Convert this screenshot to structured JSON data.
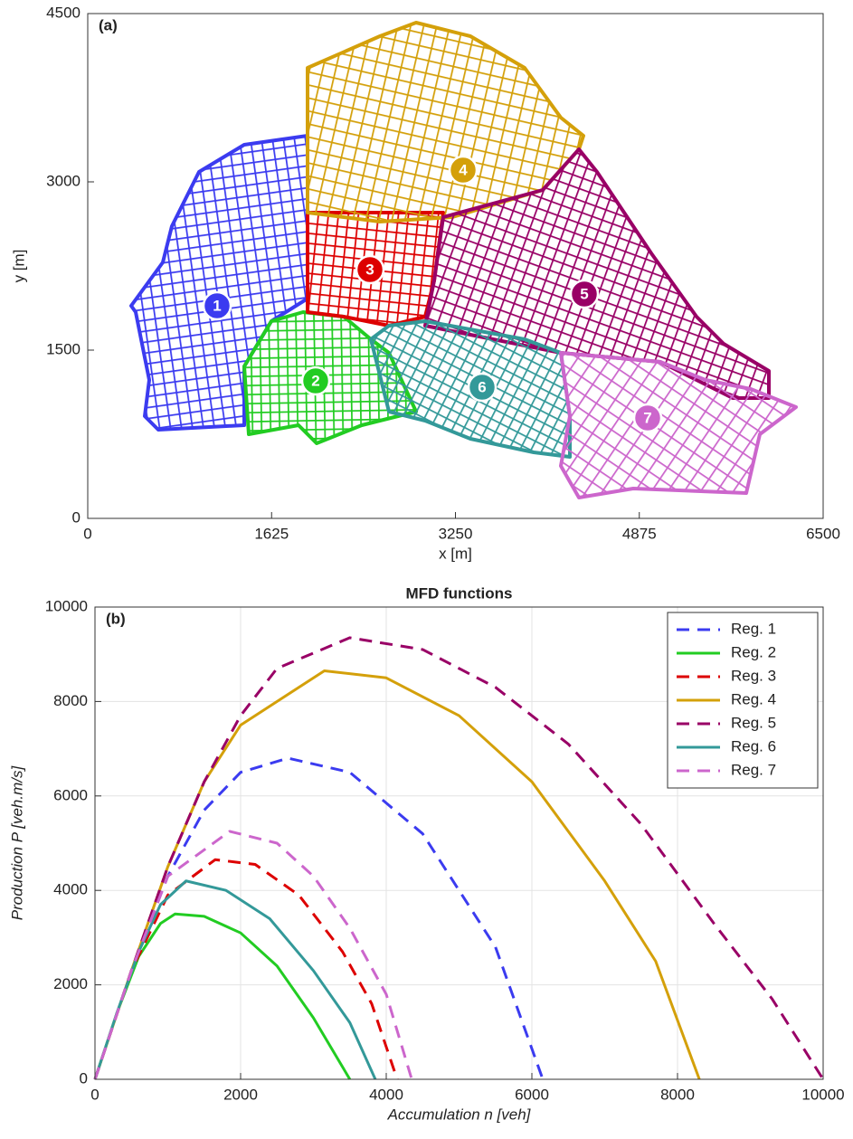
{
  "chart_data": [
    {
      "type": "map",
      "panel_label": "(a)",
      "x_label": "x [m]",
      "y_label": "y [m]",
      "xlim": [
        0,
        6500
      ],
      "xticks": [
        0,
        1625,
        3250,
        4875,
        6500
      ],
      "ylim": [
        0,
        4500
      ],
      "yticks": [
        0,
        1500,
        3000,
        4500
      ],
      "grid": false,
      "regions": [
        {
          "label": "1",
          "color": "#3b3bf0"
        },
        {
          "label": "2",
          "color": "#22cc22"
        },
        {
          "label": "3",
          "color": "#dd0000"
        },
        {
          "label": "4",
          "color": "#d4a00a"
        },
        {
          "label": "5",
          "color": "#990066"
        },
        {
          "label": "6",
          "color": "#339999"
        },
        {
          "label": "7",
          "color": "#cc66cc"
        }
      ]
    },
    {
      "type": "line",
      "title": "MFD functions",
      "panel_label": "(b)",
      "x_label": "Accumulation n [veh]",
      "y_label": "Production P [veh.m/s]",
      "xlim": [
        0,
        10000
      ],
      "xticks": [
        0,
        2000,
        4000,
        6000,
        8000,
        10000
      ],
      "ylim": [
        0,
        10000
      ],
      "yticks": [
        0,
        2000,
        4000,
        6000,
        8000,
        10000
      ],
      "grid": true,
      "legend": "top-right",
      "series": [
        {
          "name": "Reg. 1",
          "color": "#3b3bf0",
          "dashed": true,
          "x": [
            0,
            500,
            1000,
            1500,
            2000,
            2650,
            3500,
            4500,
            5500,
            6150
          ],
          "values": [
            0,
            2300,
            4300,
            5700,
            6500,
            6800,
            6500,
            5200,
            2800,
            0
          ]
        },
        {
          "name": "Reg. 2",
          "color": "#22cc22",
          "dashed": false,
          "x": [
            0,
            300,
            600,
            900,
            1100,
            1500,
            2000,
            2500,
            3000,
            3500
          ],
          "values": [
            0,
            1400,
            2600,
            3300,
            3500,
            3450,
            3100,
            2400,
            1300,
            0
          ]
        },
        {
          "name": "Reg. 3",
          "color": "#dd0000",
          "dashed": true,
          "x": [
            0,
            500,
            1000,
            1650,
            2200,
            2800,
            3400,
            3800,
            4150
          ],
          "values": [
            0,
            2300,
            3900,
            4650,
            4550,
            3900,
            2700,
            1600,
            0
          ]
        },
        {
          "name": "Reg. 4",
          "color": "#d4a00a",
          "dashed": false,
          "x": [
            0,
            500,
            1000,
            1500,
            2000,
            3150,
            4000,
            5000,
            6000,
            7000,
            7700,
            8300
          ],
          "values": [
            0,
            2300,
            4500,
            6300,
            7500,
            8650,
            8500,
            7700,
            6300,
            4200,
            2500,
            0
          ]
        },
        {
          "name": "Reg. 5",
          "color": "#990066",
          "dashed": true,
          "x": [
            0,
            500,
            1000,
            1500,
            2000,
            2500,
            3500,
            4500,
            5500,
            6500,
            7500,
            8500,
            9300,
            10000
          ],
          "values": [
            0,
            2300,
            4500,
            6300,
            7700,
            8700,
            9350,
            9100,
            8300,
            7100,
            5400,
            3300,
            1700,
            0
          ]
        },
        {
          "name": "Reg. 6",
          "color": "#339999",
          "dashed": false,
          "x": [
            0,
            300,
            600,
            900,
            1250,
            1800,
            2400,
            3000,
            3500,
            3850
          ],
          "values": [
            0,
            1400,
            2700,
            3700,
            4200,
            4000,
            3400,
            2300,
            1200,
            0
          ]
        },
        {
          "name": "Reg. 7",
          "color": "#cc66cc",
          "dashed": true,
          "x": [
            0,
            500,
            1000,
            1850,
            2500,
            3000,
            3500,
            4000,
            4350
          ],
          "values": [
            0,
            2300,
            4300,
            5250,
            5000,
            4300,
            3200,
            1800,
            0
          ]
        }
      ]
    }
  ]
}
